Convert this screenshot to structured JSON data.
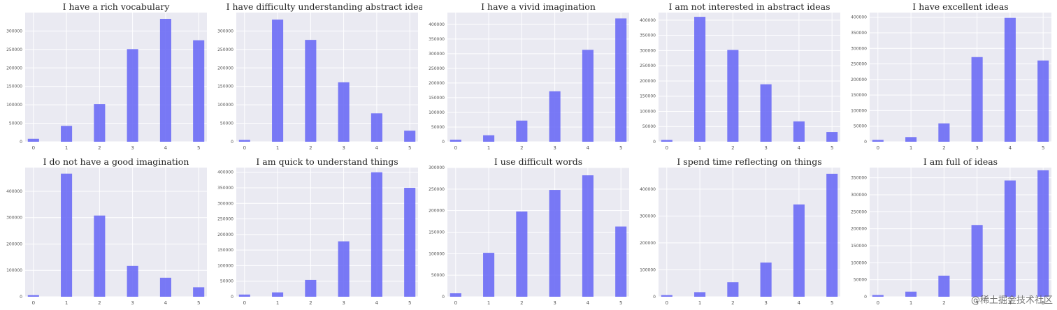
{
  "figure": {
    "watermark": "@稀土掘金技术社区"
  },
  "style": {
    "bar_color": "#6c6cf5",
    "plot_bg": "#eaeaf2",
    "grid_color": "#ffffff"
  },
  "chart_data": [
    {
      "type": "bar",
      "title": "I have a rich vocabulary",
      "categories": [
        "0",
        "1",
        "2",
        "3",
        "4",
        "5"
      ],
      "values": [
        8000,
        43000,
        102000,
        251000,
        333000,
        275000
      ],
      "ylim": [
        0,
        350000
      ],
      "yticks": [
        0,
        50000,
        100000,
        150000,
        200000,
        250000,
        300000
      ],
      "ytick_labels": [
        "0",
        "50000",
        "100000",
        "150000",
        "200000",
        "250000",
        "300000"
      ]
    },
    {
      "type": "bar",
      "title": "I have difficulty understanding abstract ideas",
      "categories": [
        "0",
        "1",
        "2",
        "3",
        "4",
        "5"
      ],
      "values": [
        5000,
        331000,
        276000,
        161000,
        77000,
        30000
      ],
      "ylim": [
        0,
        350000
      ],
      "yticks": [
        0,
        50000,
        100000,
        150000,
        200000,
        250000,
        300000
      ],
      "ytick_labels": [
        "0",
        "50000",
        "100000",
        "150000",
        "200000",
        "250000",
        "300000"
      ]
    },
    {
      "type": "bar",
      "title": "I have a vivid imagination",
      "categories": [
        "0",
        "1",
        "2",
        "3",
        "4",
        "5"
      ],
      "values": [
        7000,
        22000,
        72000,
        172000,
        313000,
        420000
      ],
      "ylim": [
        0,
        440000
      ],
      "yticks": [
        0,
        50000,
        100000,
        150000,
        200000,
        250000,
        300000,
        350000,
        400000
      ],
      "ytick_labels": [
        "0",
        "50000",
        "100000",
        "150000",
        "200000",
        "250000",
        "300000",
        "350000",
        "400000"
      ]
    },
    {
      "type": "bar",
      "title": "I am not interested in abstract ideas",
      "categories": [
        "0",
        "1",
        "2",
        "3",
        "4",
        "5"
      ],
      "values": [
        6000,
        411000,
        302000,
        189000,
        67000,
        32000
      ],
      "ylim": [
        0,
        425000
      ],
      "yticks": [
        0,
        50000,
        100000,
        150000,
        200000,
        250000,
        300000,
        350000,
        400000
      ],
      "ytick_labels": [
        "0",
        "50000",
        "100000",
        "150000",
        "200000",
        "250000",
        "300000",
        "350000",
        "400000"
      ]
    },
    {
      "type": "bar",
      "title": "I have excellent ideas",
      "categories": [
        "0",
        "1",
        "2",
        "3",
        "4",
        "5"
      ],
      "values": [
        6000,
        15000,
        59000,
        272000,
        398000,
        261000
      ],
      "ylim": [
        0,
        415000
      ],
      "yticks": [
        0,
        50000,
        100000,
        150000,
        200000,
        250000,
        300000,
        350000,
        400000
      ],
      "ytick_labels": [
        "0",
        "50000",
        "100000",
        "150000",
        "200000",
        "250000",
        "300000",
        "350000",
        "400000"
      ]
    },
    {
      "type": "bar",
      "title": "I do not have a good imagination",
      "categories": [
        "0",
        "1",
        "2",
        "3",
        "4",
        "5"
      ],
      "values": [
        6000,
        467000,
        308000,
        117000,
        72000,
        36000
      ],
      "ylim": [
        0,
        490000
      ],
      "yticks": [
        0,
        100000,
        200000,
        300000,
        400000
      ],
      "ytick_labels": [
        "0",
        "100000",
        "200000",
        "300000",
        "400000"
      ]
    },
    {
      "type": "bar",
      "title": "I am quick to understand things",
      "categories": [
        "0",
        "1",
        "2",
        "3",
        "4",
        "5"
      ],
      "values": [
        7000,
        14000,
        54000,
        178000,
        400000,
        350000
      ],
      "ylim": [
        0,
        415000
      ],
      "yticks": [
        0,
        50000,
        100000,
        150000,
        200000,
        250000,
        300000,
        350000,
        400000
      ],
      "ytick_labels": [
        "0",
        "50000",
        "100000",
        "150000",
        "200000",
        "250000",
        "300000",
        "350000",
        "400000"
      ]
    },
    {
      "type": "bar",
      "title": "I use difficult words",
      "categories": [
        "0",
        "1",
        "2",
        "3",
        "4",
        "5"
      ],
      "values": [
        8000,
        102000,
        198000,
        248000,
        282000,
        163000
      ],
      "ylim": [
        0,
        300000
      ],
      "yticks": [
        0,
        50000,
        100000,
        150000,
        200000,
        250000,
        300000
      ],
      "ytick_labels": [
        "0",
        "50000",
        "100000",
        "150000",
        "200000",
        "250000",
        "300000"
      ]
    },
    {
      "type": "bar",
      "title": "I spend time reflecting on things",
      "categories": [
        "0",
        "1",
        "2",
        "3",
        "4",
        "5"
      ],
      "values": [
        6000,
        17000,
        54000,
        127000,
        343000,
        457000
      ],
      "ylim": [
        0,
        480000
      ],
      "yticks": [
        0,
        100000,
        200000,
        300000,
        400000
      ],
      "ytick_labels": [
        "0",
        "100000",
        "200000",
        "300000",
        "400000"
      ]
    },
    {
      "type": "bar",
      "title": "I am full of ideas",
      "categories": [
        "0",
        "1",
        "2",
        "3",
        "4",
        "5"
      ],
      "values": [
        5000,
        15000,
        62000,
        211000,
        342000,
        372000
      ],
      "ylim": [
        0,
        380000
      ],
      "yticks": [
        0,
        50000,
        100000,
        150000,
        200000,
        250000,
        300000,
        350000
      ],
      "ytick_labels": [
        "0",
        "50000",
        "100000",
        "150000",
        "200000",
        "250000",
        "300000",
        "350000"
      ]
    }
  ]
}
